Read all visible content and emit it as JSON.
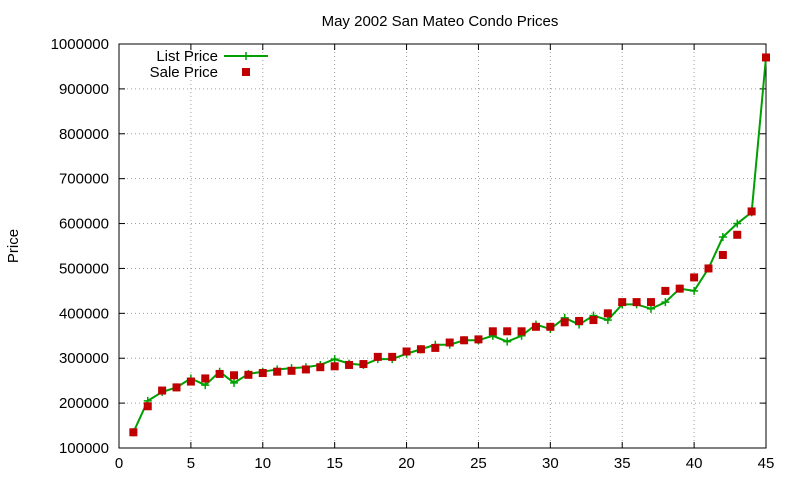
{
  "chart_data": {
    "type": "line",
    "title": "May 2002 San Mateo Condo Prices",
    "xlabel": "",
    "ylabel": "Price",
    "xlim": [
      0,
      45
    ],
    "ylim": [
      100000,
      1000000
    ],
    "xticks": [
      0,
      5,
      10,
      15,
      20,
      25,
      30,
      35,
      40,
      45
    ],
    "yticks": [
      100000,
      200000,
      300000,
      400000,
      500000,
      600000,
      700000,
      800000,
      900000,
      1000000
    ],
    "grid": true,
    "legend_position": "top-left",
    "x": [
      1,
      2,
      3,
      4,
      5,
      6,
      7,
      8,
      9,
      10,
      11,
      12,
      13,
      14,
      15,
      16,
      17,
      18,
      19,
      20,
      21,
      22,
      23,
      24,
      25,
      26,
      27,
      28,
      29,
      30,
      31,
      32,
      33,
      34,
      35,
      36,
      37,
      38,
      39,
      40,
      41,
      42,
      43,
      44,
      45
    ],
    "series": [
      {
        "name": "List Price",
        "style": "linespoints",
        "color": "#00a000",
        "marker": "plus",
        "values": [
          135000,
          205000,
          225000,
          235000,
          255000,
          240000,
          270000,
          245000,
          265000,
          270000,
          275000,
          278000,
          280000,
          285000,
          298000,
          288000,
          285000,
          298000,
          298000,
          310000,
          320000,
          330000,
          330000,
          340000,
          340000,
          350000,
          337000,
          350000,
          375000,
          365000,
          390000,
          375000,
          395000,
          385000,
          420000,
          420000,
          410000,
          425000,
          455000,
          450000,
          500000,
          570000,
          600000,
          625000,
          970000
        ]
      },
      {
        "name": "Sale Price",
        "style": "points",
        "color": "#c00000",
        "marker": "square",
        "values": [
          135000,
          193000,
          228000,
          235000,
          248000,
          255000,
          265000,
          262000,
          263000,
          267000,
          270000,
          272000,
          275000,
          280000,
          282000,
          285000,
          287000,
          303000,
          303000,
          315000,
          320000,
          323000,
          335000,
          340000,
          342000,
          360000,
          360000,
          360000,
          370000,
          370000,
          380000,
          383000,
          385000,
          400000,
          425000,
          425000,
          425000,
          450000,
          455000,
          480000,
          500000,
          530000,
          575000,
          627000,
          970000
        ]
      }
    ]
  }
}
